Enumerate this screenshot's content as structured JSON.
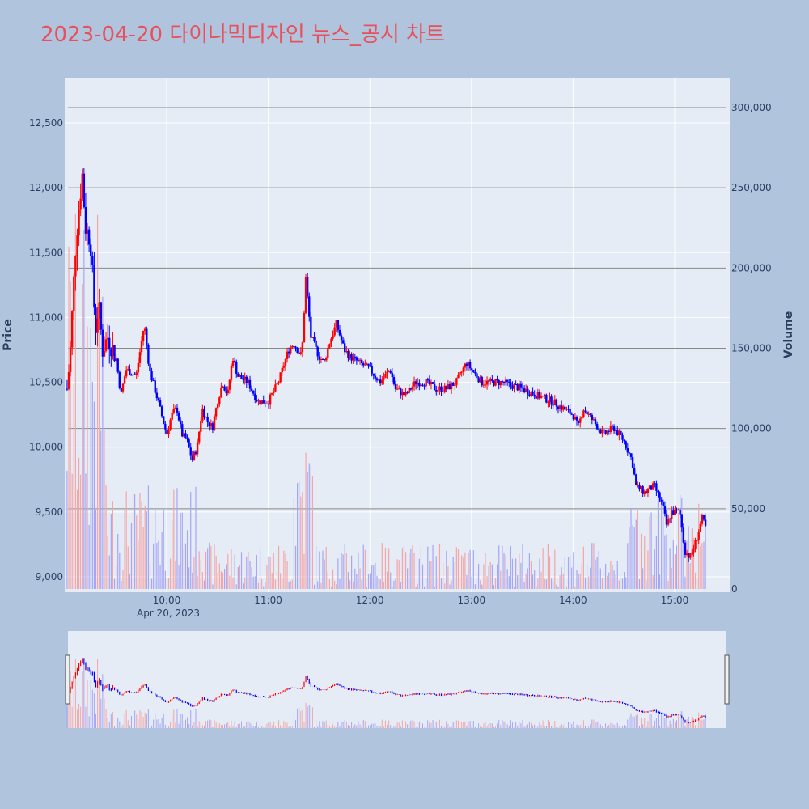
{
  "title": "2023-04-20 다이나믹디자인 뉴스_공시 차트",
  "colors": {
    "background": "#b0c4de",
    "plot_bg": "#e5ecf6",
    "title": "#e8505b",
    "up": "#ff0000",
    "down": "#0000ff",
    "up_volume": "#f4a6a6",
    "down_volume": "#a6a6f4"
  },
  "chart_data": {
    "type": "candlestick",
    "ylabel": "Price",
    "y2label": "Volume",
    "ylim": [
      8900,
      12650
    ],
    "y2lim": [
      0,
      310000
    ],
    "price_ticks": [
      "9,000",
      "9,500",
      "10,000",
      "10,500",
      "11,000",
      "11,500",
      "12,000",
      "12,500"
    ],
    "volume_ticks": [
      "0",
      "50,000",
      "100,000",
      "150,000",
      "200,000",
      "250,000",
      "300,000"
    ],
    "x_ticks": [
      "10:00",
      "11:00",
      "12:00",
      "13:00",
      "14:00",
      "15:00"
    ],
    "x_sublabel": "Apr 20, 2023",
    "price_path": [
      [
        9.02,
        10450
      ],
      [
        9.05,
        10700
      ],
      [
        9.1,
        11500
      ],
      [
        9.13,
        11800
      ],
      [
        9.17,
        12100
      ],
      [
        9.2,
        11700
      ],
      [
        9.25,
        11600
      ],
      [
        9.3,
        10900
      ],
      [
        9.33,
        11100
      ],
      [
        9.37,
        10750
      ],
      [
        9.42,
        10850
      ],
      [
        9.5,
        10700
      ],
      [
        9.55,
        10400
      ],
      [
        9.6,
        10600
      ],
      [
        9.7,
        10550
      ],
      [
        9.78,
        10950
      ],
      [
        9.83,
        10600
      ],
      [
        9.9,
        10400
      ],
      [
        9.95,
        10250
      ],
      [
        10.0,
        10100
      ],
      [
        10.05,
        10250
      ],
      [
        10.1,
        10300
      ],
      [
        10.15,
        10100
      ],
      [
        10.2,
        10050
      ],
      [
        10.25,
        9900
      ],
      [
        10.3,
        10000
      ],
      [
        10.35,
        10300
      ],
      [
        10.4,
        10200
      ],
      [
        10.45,
        10150
      ],
      [
        10.5,
        10350
      ],
      [
        10.55,
        10500
      ],
      [
        10.6,
        10400
      ],
      [
        10.65,
        10700
      ],
      [
        10.7,
        10550
      ],
      [
        10.8,
        10500
      ],
      [
        10.9,
        10350
      ],
      [
        11.0,
        10350
      ],
      [
        11.1,
        10500
      ],
      [
        11.2,
        10750
      ],
      [
        11.25,
        10800
      ],
      [
        11.33,
        10700
      ],
      [
        11.37,
        11300
      ],
      [
        11.42,
        10850
      ],
      [
        11.5,
        10700
      ],
      [
        11.55,
        10650
      ],
      [
        11.6,
        10800
      ],
      [
        11.67,
        10950
      ],
      [
        11.75,
        10750
      ],
      [
        11.8,
        10700
      ],
      [
        11.9,
        10650
      ],
      [
        12.0,
        10600
      ],
      [
        12.1,
        10500
      ],
      [
        12.2,
        10600
      ],
      [
        12.25,
        10450
      ],
      [
        12.35,
        10400
      ],
      [
        12.45,
        10500
      ],
      [
        12.55,
        10500
      ],
      [
        12.65,
        10450
      ],
      [
        12.75,
        10450
      ],
      [
        12.85,
        10500
      ],
      [
        12.95,
        10650
      ],
      [
        13.0,
        10600
      ],
      [
        13.1,
        10500
      ],
      [
        13.3,
        10500
      ],
      [
        13.5,
        10450
      ],
      [
        13.65,
        10400
      ],
      [
        13.8,
        10350
      ],
      [
        13.9,
        10300
      ],
      [
        14.0,
        10250
      ],
      [
        14.05,
        10150
      ],
      [
        14.1,
        10300
      ],
      [
        14.2,
        10200
      ],
      [
        14.3,
        10100
      ],
      [
        14.4,
        10150
      ],
      [
        14.5,
        10050
      ],
      [
        14.58,
        9900
      ],
      [
        14.62,
        9700
      ],
      [
        14.7,
        9650
      ],
      [
        14.8,
        9700
      ],
      [
        14.88,
        9550
      ],
      [
        14.92,
        9400
      ],
      [
        14.97,
        9500
      ],
      [
        15.05,
        9500
      ],
      [
        15.1,
        9200
      ],
      [
        15.15,
        9150
      ],
      [
        15.2,
        9250
      ],
      [
        15.27,
        9450
      ],
      [
        15.32,
        9350
      ]
    ]
  }
}
